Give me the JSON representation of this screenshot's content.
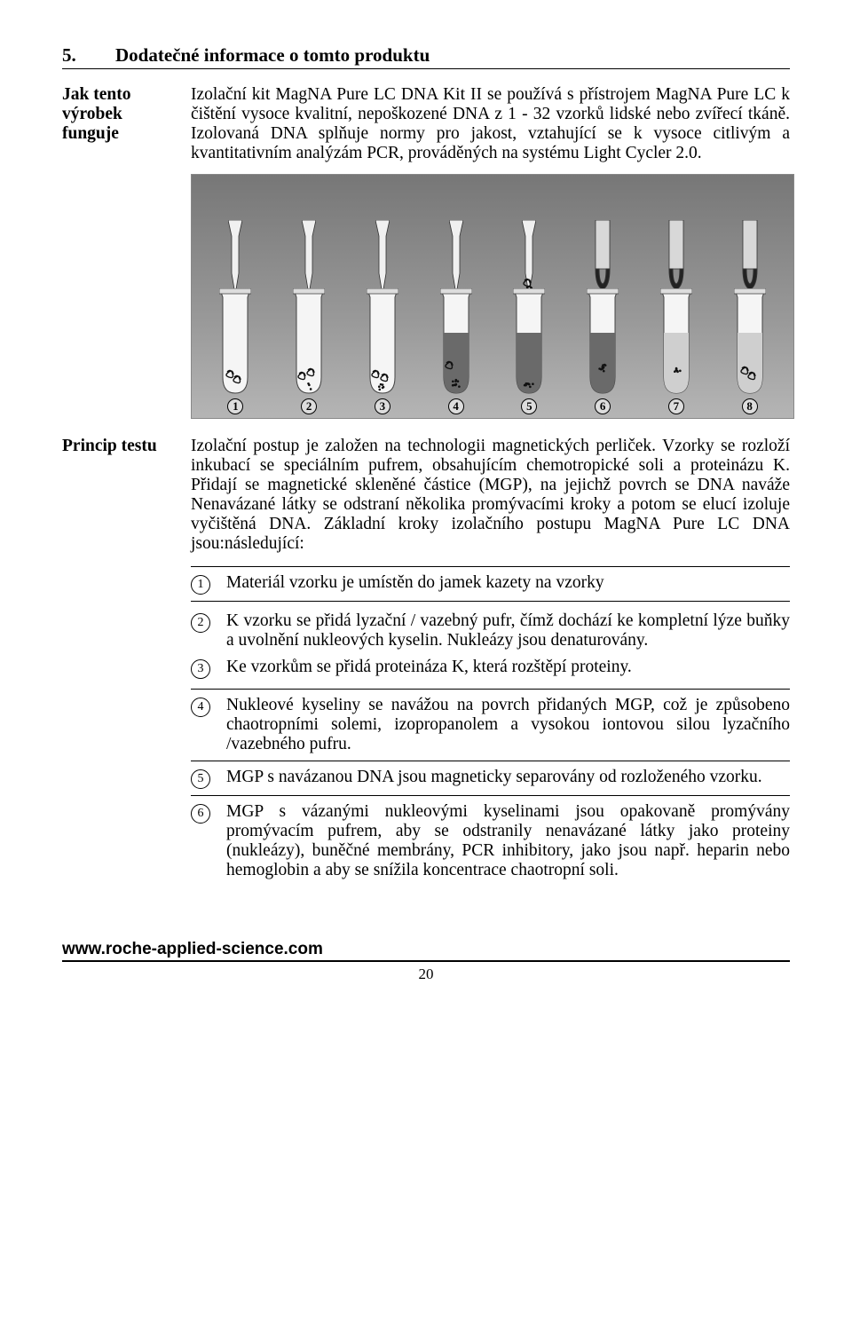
{
  "heading": {
    "num": "5.",
    "text": "Dodatečné informace o tomto produktu"
  },
  "s1": {
    "label": "Jak tento výrobek funguje",
    "text": "Izolační kit MagNA Pure LC DNA Kit II se používá s přístrojem MagNA Pure LC k čištění vysoce kvalitní, nepoškozené DNA z 1 - 32 vzorků lidské nebo zvířecí tkáně. Izolovaná DNA splňuje normy pro jakost, vztahující se k vysoce citlivým a kvantitativním analýzám PCR, prováděných  na systému Light Cycler 2.0."
  },
  "diagram": {
    "background_gradient": [
      "#777777",
      "#b5b5b5"
    ],
    "border": "#888888",
    "tube_count": 8,
    "pipette_indices": [
      0,
      1,
      2,
      3,
      4
    ],
    "magnet_indices": [
      5,
      6,
      7
    ],
    "fill_colors": {
      "0": "none",
      "1": "none",
      "2": "none",
      "3": "#6a6a6a",
      "4": "#6a6a6a",
      "5": "#6a6a6a",
      "6": "#cfcfcf",
      "7": "#cfcfcf"
    },
    "particle_style": "dots",
    "labels": [
      "1",
      "2",
      "3",
      "4",
      "5",
      "6",
      "7",
      "8"
    ]
  },
  "s2": {
    "label": "Princip testu",
    "text": "Izolační postup je založen na technologii magnetických perliček. Vzorky se rozloží inkubací se speciálním pufrem, obsahujícím chemotropické soli  a proteinázu K. Přidají se magnetické skleněné částice (MGP), na jejichž povrch se DNA naváže  Nenavázané látky se odstraní několika promývacími kroky a potom se elucí  izoluje vyčištěná DNA. Základní kroky izolačního postupu MagNA Pure LC DNA jsou:následující:"
  },
  "steps": [
    {
      "n": "1",
      "t": "Materiál vzorku je umístěn do jamek kazety na vzorky"
    },
    {
      "group": [
        {
          "n": "2",
          "t": "K vzorku se přidá lyzační / vazebný pufr, čímž dochází ke kompletní  lýze buňky a uvolnění nukleových kyselin. Nukleázy jsou denaturovány."
        },
        {
          "n": "3",
          "t": "Ke vzorkům se přidá proteináza K, která rozštěpí proteiny."
        }
      ]
    },
    {
      "n": "4",
      "t": "Nukleové kyseliny se navážou na povrch přidaných MGP, což je způsobeno chaotropními solemi, izopropanolem a vysokou iontovou silou lyzačního /vazebného pufru."
    },
    {
      "n": "5",
      "t": "MGP s navázanou DNA jsou magneticky separovány od rozloženého vzorku."
    },
    {
      "n": "6",
      "t": "MGP s vázanými nukleovými kyselinami jsou opakovaně promývány promývacím pufrem, aby se odstranily nenavázané látky jako proteiny (nukleázy), buněčné membrány, PCR inhibitory, jako jsou např. heparin nebo hemoglobin a aby se snížila koncentrace chaotropní soli."
    }
  ],
  "footer": {
    "url": "www.roche-applied-science.com",
    "page": "20"
  },
  "colors": {
    "text": "#000000",
    "bg": "#ffffff",
    "rule": "#000000",
    "tube_body": "#eeeeee",
    "tube_outline": "#444444"
  }
}
